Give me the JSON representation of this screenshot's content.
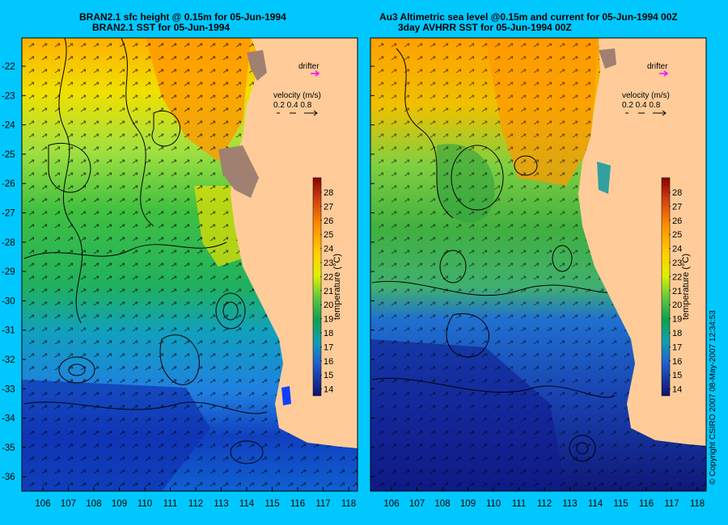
{
  "left_panel": {
    "title_line1": "BRAN2.1 sfc height @ 0.15m for 05-Jun-1994",
    "title_line2": "BRAN2.1 SST for 05-Jun-1994"
  },
  "right_panel": {
    "title_line1": "Au3 Altimetric sea level  @0.15m and current for 05-Jun-1994 00Z",
    "title_line2": "3day AVHRR SST for 05-Jun-1994 00Z"
  },
  "legend": {
    "drifter_label": "drifter",
    "velocity_label": "velocity (m/s)",
    "velocity_values": "0.2 0.4 0.8",
    "drifter_color": "#ff00ff"
  },
  "colorbar": {
    "label": "temperature (°C)",
    "ticks": [
      "28",
      "27",
      "26",
      "25",
      "24",
      "23",
      "22",
      "21",
      "20",
      "19",
      "18",
      "17",
      "16",
      "15",
      "14"
    ],
    "colors": [
      "#8b0000",
      "#c0301a",
      "#e06010",
      "#f08000",
      "#ffa000",
      "#ffc800",
      "#f0f000",
      "#a0dc20",
      "#40c040",
      "#10a050",
      "#10a0a0",
      "#2080e0",
      "#1040c0",
      "#1020a0",
      "#101070"
    ]
  },
  "axes": {
    "lat_labels": [
      "-22",
      "-23",
      "-24",
      "-25",
      "-26",
      "-27",
      "-28",
      "-29",
      "-30",
      "-31",
      "-32",
      "-33",
      "-34",
      "-35",
      "-36"
    ],
    "lon_labels": [
      "106",
      "107",
      "108",
      "109",
      "110",
      "111",
      "112",
      "113",
      "114",
      "115",
      "116",
      "117",
      "118"
    ]
  },
  "land_color": "#ffcc99",
  "background_color": "#00c8ff",
  "copyright": "© Copyright CSIRO 2007   08-May-2007 12:34:53"
}
